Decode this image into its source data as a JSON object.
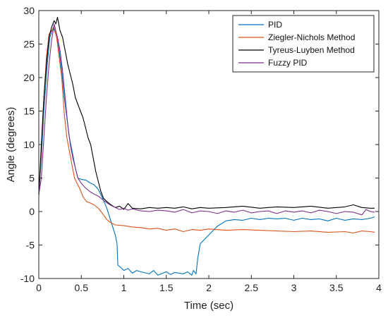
{
  "chart_data": {
    "type": "line",
    "title": "",
    "xlabel": "Time (sec)",
    "ylabel": "Angle (degrees)",
    "xlim": [
      0,
      4
    ],
    "ylim": [
      -10,
      30
    ],
    "xticks": [
      0,
      0.5,
      1,
      1.5,
      2,
      2.5,
      3,
      3.5,
      4
    ],
    "xtick_labels": [
      "0",
      "0.5",
      "1",
      "1.5",
      "2",
      "2.5",
      "3",
      "3.5",
      "4"
    ],
    "yticks": [
      -10,
      -5,
      0,
      5,
      10,
      15,
      20,
      25,
      30
    ],
    "ytick_labels": [
      "-10",
      "-5",
      "0",
      "5",
      "10",
      "15",
      "20",
      "25",
      "30"
    ],
    "grid": false,
    "legend_position": "top-right",
    "series": [
      {
        "name": "PID",
        "color": "#0072BD",
        "points": [
          [
            0,
            2.5
          ],
          [
            0.03,
            8
          ],
          [
            0.06,
            15
          ],
          [
            0.1,
            22
          ],
          [
            0.13,
            26
          ],
          [
            0.17,
            27.5
          ],
          [
            0.2,
            26.5
          ],
          [
            0.23,
            25
          ],
          [
            0.27,
            21
          ],
          [
            0.3,
            17
          ],
          [
            0.33,
            14
          ],
          [
            0.36,
            11
          ],
          [
            0.4,
            8.5
          ],
          [
            0.43,
            6.5
          ],
          [
            0.46,
            5
          ],
          [
            0.5,
            4.8
          ],
          [
            0.55,
            4.7
          ],
          [
            0.6,
            4.3
          ],
          [
            0.65,
            4
          ],
          [
            0.7,
            3.3
          ],
          [
            0.75,
            2
          ],
          [
            0.8,
            0.5
          ],
          [
            0.85,
            -1.5
          ],
          [
            0.9,
            -3.5
          ],
          [
            0.92,
            -4.8
          ],
          [
            0.93,
            -8
          ],
          [
            0.96,
            -8.3
          ],
          [
            1.0,
            -8.8
          ],
          [
            1.05,
            -8.5
          ],
          [
            1.1,
            -9.2
          ],
          [
            1.15,
            -8.8
          ],
          [
            1.2,
            -9.0
          ],
          [
            1.3,
            -9.3
          ],
          [
            1.35,
            -8.8
          ],
          [
            1.4,
            -9.5
          ],
          [
            1.5,
            -9.0
          ],
          [
            1.55,
            -9.4
          ],
          [
            1.6,
            -9.1
          ],
          [
            1.7,
            -9.3
          ],
          [
            1.75,
            -9.0
          ],
          [
            1.8,
            -9.5
          ],
          [
            1.82,
            -8.8
          ],
          [
            1.85,
            -9.3
          ],
          [
            1.87,
            -7
          ],
          [
            1.9,
            -4.8
          ],
          [
            2.0,
            -3.5
          ],
          [
            2.1,
            -2.2
          ],
          [
            2.2,
            -1.4
          ],
          [
            2.3,
            -1.2
          ],
          [
            2.4,
            -1.3
          ],
          [
            2.5,
            -1.0
          ],
          [
            2.6,
            -1.2
          ],
          [
            2.7,
            -1.0
          ],
          [
            2.8,
            -1.1
          ],
          [
            2.9,
            -1.0
          ],
          [
            3.0,
            -1.3
          ],
          [
            3.1,
            -1.0
          ],
          [
            3.2,
            -1.2
          ],
          [
            3.3,
            -1.1
          ],
          [
            3.4,
            -1.4
          ],
          [
            3.5,
            -1.0
          ],
          [
            3.6,
            -1.3
          ],
          [
            3.7,
            -1.1
          ],
          [
            3.8,
            -1.2
          ],
          [
            3.9,
            -1.0
          ],
          [
            3.95,
            -0.8
          ]
        ]
      },
      {
        "name": "Ziegler-Nichols Method",
        "color": "#D95319",
        "points": [
          [
            0,
            2.5
          ],
          [
            0.03,
            9
          ],
          [
            0.06,
            17
          ],
          [
            0.09,
            23
          ],
          [
            0.12,
            26.5
          ],
          [
            0.15,
            27
          ],
          [
            0.18,
            27.5
          ],
          [
            0.21,
            26
          ],
          [
            0.24,
            23
          ],
          [
            0.27,
            20
          ],
          [
            0.3,
            14.5
          ],
          [
            0.33,
            11
          ],
          [
            0.36,
            9
          ],
          [
            0.39,
            7
          ],
          [
            0.42,
            5
          ],
          [
            0.45,
            4.2
          ],
          [
            0.48,
            3.5
          ],
          [
            0.52,
            2.2
          ],
          [
            0.56,
            1.5
          ],
          [
            0.6,
            1.3
          ],
          [
            0.65,
            1.0
          ],
          [
            0.7,
            0.5
          ],
          [
            0.75,
            -0.3
          ],
          [
            0.8,
            -1.2
          ],
          [
            0.85,
            -1.7
          ],
          [
            0.9,
            -2.0
          ],
          [
            1.0,
            -2.1
          ],
          [
            1.1,
            -2.3
          ],
          [
            1.2,
            -2.4
          ],
          [
            1.3,
            -2.6
          ],
          [
            1.4,
            -2.5
          ],
          [
            1.5,
            -2.8
          ],
          [
            1.6,
            -2.6
          ],
          [
            1.7,
            -3.0
          ],
          [
            1.8,
            -2.7
          ],
          [
            1.9,
            -2.8
          ],
          [
            2.0,
            -2.6
          ],
          [
            2.2,
            -2.8
          ],
          [
            2.4,
            -2.7
          ],
          [
            2.6,
            -2.8
          ],
          [
            2.8,
            -2.9
          ],
          [
            3.0,
            -3.0
          ],
          [
            3.2,
            -2.9
          ],
          [
            3.4,
            -3.1
          ],
          [
            3.6,
            -3.0
          ],
          [
            3.7,
            -3.2
          ],
          [
            3.8,
            -2.9
          ],
          [
            3.9,
            -3.0
          ],
          [
            3.95,
            -3.1
          ]
        ]
      },
      {
        "name": "Tyreus-Luyben Method",
        "color": "#000000",
        "points": [
          [
            0,
            2.5
          ],
          [
            0.03,
            10
          ],
          [
            0.06,
            17
          ],
          [
            0.09,
            22
          ],
          [
            0.12,
            26
          ],
          [
            0.15,
            27.5
          ],
          [
            0.18,
            28.5
          ],
          [
            0.2,
            28
          ],
          [
            0.22,
            29
          ],
          [
            0.25,
            27
          ],
          [
            0.28,
            26
          ],
          [
            0.31,
            24
          ],
          [
            0.34,
            22
          ],
          [
            0.37,
            20.5
          ],
          [
            0.4,
            19
          ],
          [
            0.43,
            17
          ],
          [
            0.46,
            16
          ],
          [
            0.49,
            15
          ],
          [
            0.52,
            14
          ],
          [
            0.55,
            12.5
          ],
          [
            0.58,
            11
          ],
          [
            0.61,
            10
          ],
          [
            0.64,
            8
          ],
          [
            0.67,
            6
          ],
          [
            0.7,
            4.5
          ],
          [
            0.73,
            3
          ],
          [
            0.76,
            2
          ],
          [
            0.8,
            1.5
          ],
          [
            0.85,
            1.0
          ],
          [
            0.9,
            0.6
          ],
          [
            0.95,
            0.8
          ],
          [
            1.0,
            0.3
          ],
          [
            1.05,
            1.2
          ],
          [
            1.1,
            0.5
          ],
          [
            1.2,
            0.4
          ],
          [
            1.3,
            0.6
          ],
          [
            1.4,
            0.5
          ],
          [
            1.5,
            0.6
          ],
          [
            1.6,
            0.5
          ],
          [
            1.7,
            0.7
          ],
          [
            1.8,
            0.4
          ],
          [
            1.9,
            0.6
          ],
          [
            2.0,
            0.5
          ],
          [
            2.2,
            0.6
          ],
          [
            2.4,
            0.8
          ],
          [
            2.6,
            0.5
          ],
          [
            2.8,
            0.7
          ],
          [
            3.0,
            0.6
          ],
          [
            3.2,
            0.8
          ],
          [
            3.4,
            0.5
          ],
          [
            3.6,
            0.7
          ],
          [
            3.7,
            1.0
          ],
          [
            3.8,
            0.6
          ],
          [
            3.9,
            0.5
          ],
          [
            3.95,
            0.5
          ]
        ]
      },
      {
        "name": "Fuzzy PID",
        "color": "#7E2F8E",
        "points": [
          [
            0,
            2.5
          ],
          [
            0.03,
            5
          ],
          [
            0.06,
            11
          ],
          [
            0.09,
            17
          ],
          [
            0.12,
            22
          ],
          [
            0.15,
            25.5
          ],
          [
            0.18,
            28
          ],
          [
            0.2,
            27
          ],
          [
            0.22,
            26
          ],
          [
            0.25,
            24
          ],
          [
            0.28,
            21
          ],
          [
            0.31,
            17
          ],
          [
            0.34,
            13
          ],
          [
            0.37,
            10
          ],
          [
            0.4,
            8
          ],
          [
            0.43,
            6.5
          ],
          [
            0.46,
            5
          ],
          [
            0.5,
            4.2
          ],
          [
            0.55,
            3.5
          ],
          [
            0.6,
            3.0
          ],
          [
            0.65,
            2.6
          ],
          [
            0.7,
            2.3
          ],
          [
            0.75,
            1.8
          ],
          [
            0.8,
            1.3
          ],
          [
            0.85,
            0.9
          ],
          [
            0.9,
            0.6
          ],
          [
            0.95,
            0.3
          ],
          [
            1.0,
            0.5
          ],
          [
            1.05,
            0.2
          ],
          [
            1.1,
            0.4
          ],
          [
            1.2,
            0.1
          ],
          [
            1.3,
            0
          ],
          [
            1.4,
            0.2
          ],
          [
            1.5,
            0.1
          ],
          [
            1.6,
            -0.1
          ],
          [
            1.7,
            0.3
          ],
          [
            1.8,
            -0.2
          ],
          [
            1.9,
            0.1
          ],
          [
            2.0,
            0
          ],
          [
            2.1,
            -0.3
          ],
          [
            2.2,
            0.1
          ],
          [
            2.3,
            -0.1
          ],
          [
            2.4,
            0.2
          ],
          [
            2.5,
            -0.2
          ],
          [
            2.6,
            0
          ],
          [
            2.7,
            0.1
          ],
          [
            2.8,
            -0.3
          ],
          [
            2.9,
            0.1
          ],
          [
            3.0,
            -0.1
          ],
          [
            3.1,
            0.1
          ],
          [
            3.2,
            -0.2
          ],
          [
            3.3,
            0.2
          ],
          [
            3.4,
            0
          ],
          [
            3.5,
            -0.3
          ],
          [
            3.6,
            0
          ],
          [
            3.7,
            -0.1
          ],
          [
            3.8,
            -0.5
          ],
          [
            3.85,
            0.3
          ],
          [
            3.9,
            0
          ],
          [
            3.95,
            -0.1
          ]
        ]
      }
    ]
  }
}
